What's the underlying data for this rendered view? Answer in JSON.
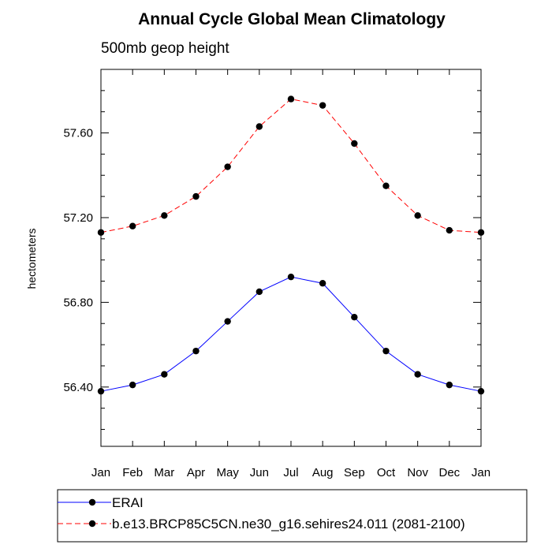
{
  "chart_data": {
    "type": "line",
    "title": "Annual Cycle Global Mean Climatology",
    "subtitle": "500mb geop height",
    "xlabel": "",
    "ylabel": "hectometers",
    "categories": [
      "Jan",
      "Feb",
      "Mar",
      "Apr",
      "May",
      "Jun",
      "Jul",
      "Aug",
      "Sep",
      "Oct",
      "Nov",
      "Dec",
      "Jan"
    ],
    "ylim": [
      56.12,
      57.9
    ],
    "yticks_major": [
      56.4,
      56.8,
      57.2,
      57.6
    ],
    "ytick_labels": [
      "56.40",
      "56.80",
      "57.20",
      "57.60"
    ],
    "yticks_minor": [
      56.2,
      56.3,
      56.5,
      56.6,
      56.7,
      56.9,
      57.0,
      57.1,
      57.3,
      57.4,
      57.5,
      57.7,
      57.8
    ],
    "grid": false,
    "legend_position": "bottom",
    "series": [
      {
        "name": "ERAI",
        "color": "#0000ff",
        "line_style": "solid",
        "marker": "filled-circle",
        "values": [
          56.38,
          56.41,
          56.46,
          56.57,
          56.71,
          56.85,
          56.92,
          56.89,
          56.73,
          56.57,
          56.46,
          56.41,
          56.38
        ]
      },
      {
        "name": "b.e13.BRCP85C5CN.ne30_g16.sehires24.011 (2081-2100)",
        "color": "#ff0000",
        "line_style": "dashed",
        "marker": "filled-circle",
        "values": [
          57.13,
          57.16,
          57.21,
          57.3,
          57.44,
          57.63,
          57.76,
          57.73,
          57.55,
          57.35,
          57.21,
          57.14,
          57.13
        ]
      }
    ]
  }
}
